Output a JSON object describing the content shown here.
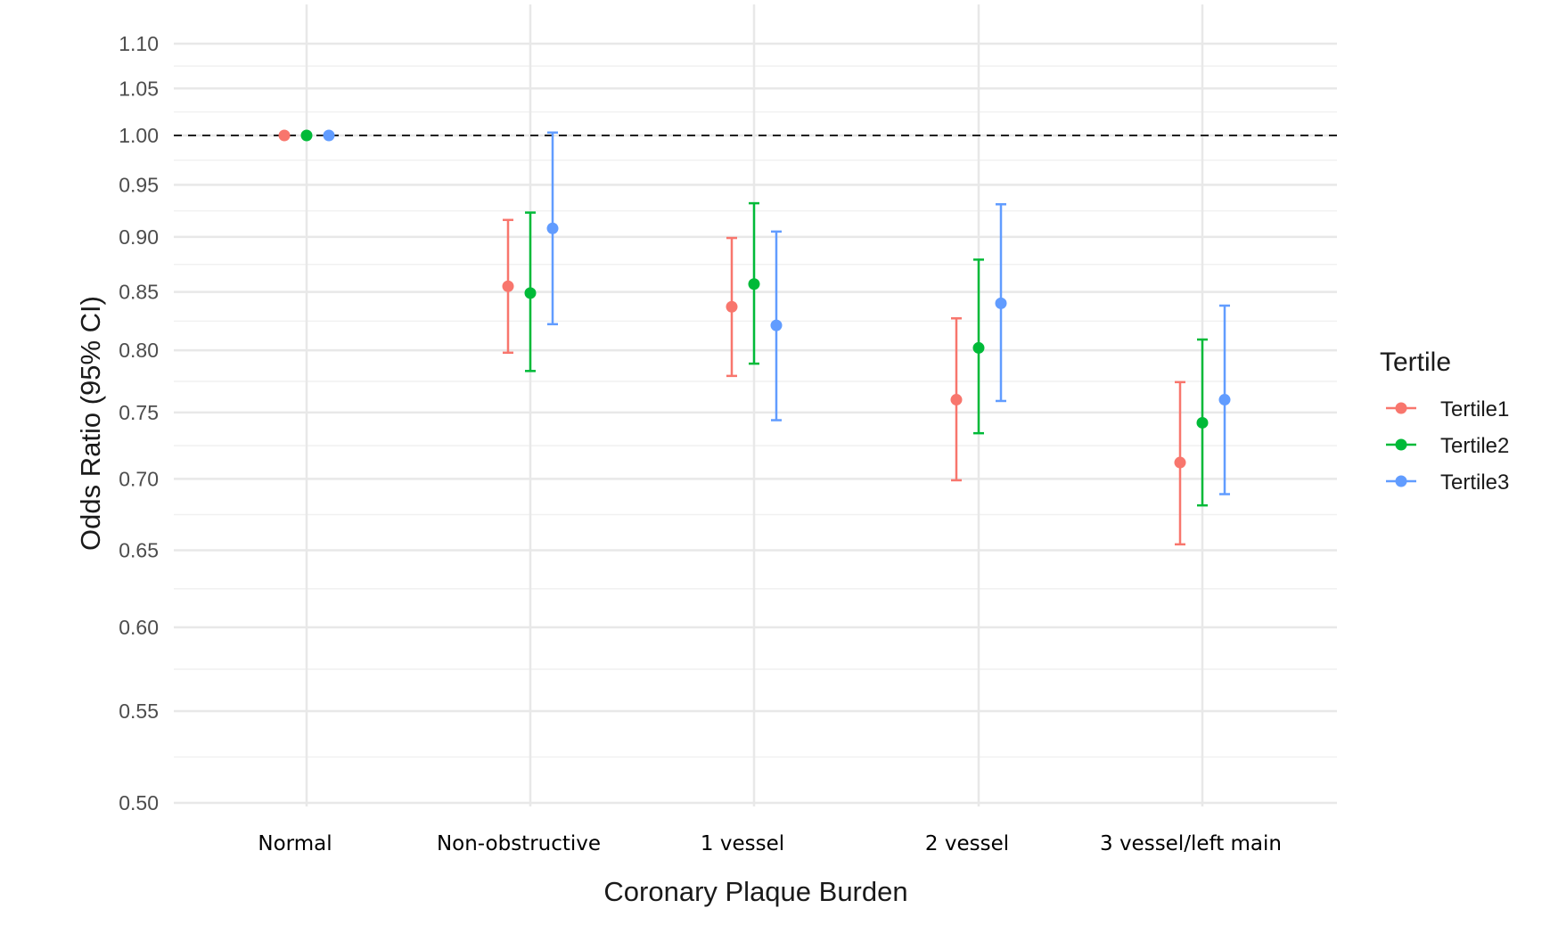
{
  "chart_data": {
    "type": "scatter",
    "subtype": "point-errorbar",
    "title": "",
    "xlabel": "Coronary Plaque Burden",
    "ylabel": "Odds Ratio (95% CI)",
    "y_scale": "log",
    "ylim": [
      0.5,
      1.12
    ],
    "yticks": [
      "1.10",
      "1.05",
      "1.00",
      "0.95",
      "0.90",
      "0.85",
      "0.80",
      "0.75",
      "0.70",
      "0.65",
      "0.60",
      "0.55",
      "0.50"
    ],
    "reference_line": 1.0,
    "grid": true,
    "categories": [
      "Normal",
      "Non-obstructive",
      "1 vessel",
      "2 vessel",
      "3 vessel/left main"
    ],
    "legend": {
      "title": "Tertile",
      "position": "right"
    },
    "series": [
      {
        "name": "Tertile1",
        "color": "#F8766D",
        "values": [
          1.0,
          0.855,
          0.837,
          0.76,
          0.712
        ],
        "lower": [
          null,
          0.798,
          0.779,
          0.699,
          0.654
        ],
        "upper": [
          null,
          0.916,
          0.899,
          0.827,
          0.774
        ]
      },
      {
        "name": "Tertile2",
        "color": "#00BA38",
        "values": [
          1.0,
          0.849,
          0.857,
          0.802,
          0.742
        ],
        "lower": [
          null,
          0.783,
          0.789,
          0.734,
          0.681
        ],
        "upper": [
          null,
          0.923,
          0.932,
          0.879,
          0.809
        ]
      },
      {
        "name": "Tertile3",
        "color": "#619CFF",
        "values": [
          1.0,
          0.908,
          0.821,
          0.84,
          0.76
        ],
        "lower": [
          null,
          0.822,
          0.744,
          0.759,
          0.689
        ],
        "upper": [
          null,
          1.003,
          0.905,
          0.931,
          0.838
        ]
      }
    ]
  }
}
